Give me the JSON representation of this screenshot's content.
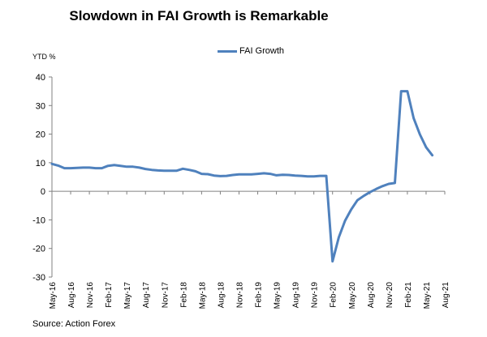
{
  "chart_data": {
    "type": "line",
    "title": "Slowdown in FAI Growth is Remarkable",
    "ylabel": "YTD %",
    "xlabel": "",
    "source": "Source: Action Forex",
    "legend": "FAI Growth",
    "legend_position": "top",
    "color": "#4F81BD",
    "ylim": [
      -30,
      40
    ],
    "yticks": [
      40,
      30,
      20,
      10,
      0,
      -10,
      -20,
      -30
    ],
    "x_ticks": [
      "May-16",
      "Aug-16",
      "Nov-16",
      "Feb-17",
      "May-17",
      "Aug-17",
      "Nov-17",
      "Feb-18",
      "May-18",
      "Aug-18",
      "Nov-18",
      "Feb-19",
      "May-19",
      "Aug-19",
      "Nov-19",
      "Feb-20",
      "May-20",
      "Aug-20",
      "Nov-20",
      "Feb-21",
      "May-21",
      "Aug-21"
    ],
    "series": [
      {
        "name": "FAI Growth",
        "x": [
          "May-16",
          "Jun-16",
          "Jul-16",
          "Aug-16",
          "Sep-16",
          "Oct-16",
          "Nov-16",
          "Dec-16",
          "Jan-17",
          "Feb-17",
          "Mar-17",
          "Apr-17",
          "May-17",
          "Jun-17",
          "Jul-17",
          "Aug-17",
          "Sep-17",
          "Oct-17",
          "Nov-17",
          "Dec-17",
          "Jan-18",
          "Feb-18",
          "Mar-18",
          "Apr-18",
          "May-18",
          "Jun-18",
          "Jul-18",
          "Aug-18",
          "Sep-18",
          "Oct-18",
          "Nov-18",
          "Dec-18",
          "Jan-19",
          "Feb-19",
          "Mar-19",
          "Apr-19",
          "May-19",
          "Jun-19",
          "Jul-19",
          "Aug-19",
          "Sep-19",
          "Oct-19",
          "Nov-19",
          "Dec-19",
          "Jan-20",
          "Feb-20",
          "Mar-20",
          "Apr-20",
          "May-20",
          "Jun-20",
          "Jul-20",
          "Aug-20",
          "Sep-20",
          "Oct-20",
          "Nov-20",
          "Dec-20",
          "Jan-21",
          "Feb-21",
          "Mar-21",
          "Apr-21",
          "May-21",
          "Jun-21"
        ],
        "values": [
          9.6,
          9.0,
          8.1,
          8.1,
          8.2,
          8.3,
          8.3,
          8.1,
          8.1,
          8.9,
          9.2,
          8.9,
          8.6,
          8.6,
          8.3,
          7.8,
          7.5,
          7.3,
          7.2,
          7.2,
          7.2,
          7.9,
          7.5,
          7.0,
          6.1,
          6.0,
          5.5,
          5.3,
          5.4,
          5.7,
          5.9,
          5.9,
          5.9,
          6.1,
          6.3,
          6.1,
          5.6,
          5.8,
          5.7,
          5.5,
          5.4,
          5.2,
          5.2,
          5.4,
          5.4,
          -24.5,
          -16.1,
          -10.3,
          -6.3,
          -3.1,
          -1.6,
          -0.3,
          0.8,
          1.8,
          2.6,
          2.9,
          35.0,
          35.0,
          25.6,
          19.9,
          15.4,
          12.6
        ]
      }
    ]
  }
}
